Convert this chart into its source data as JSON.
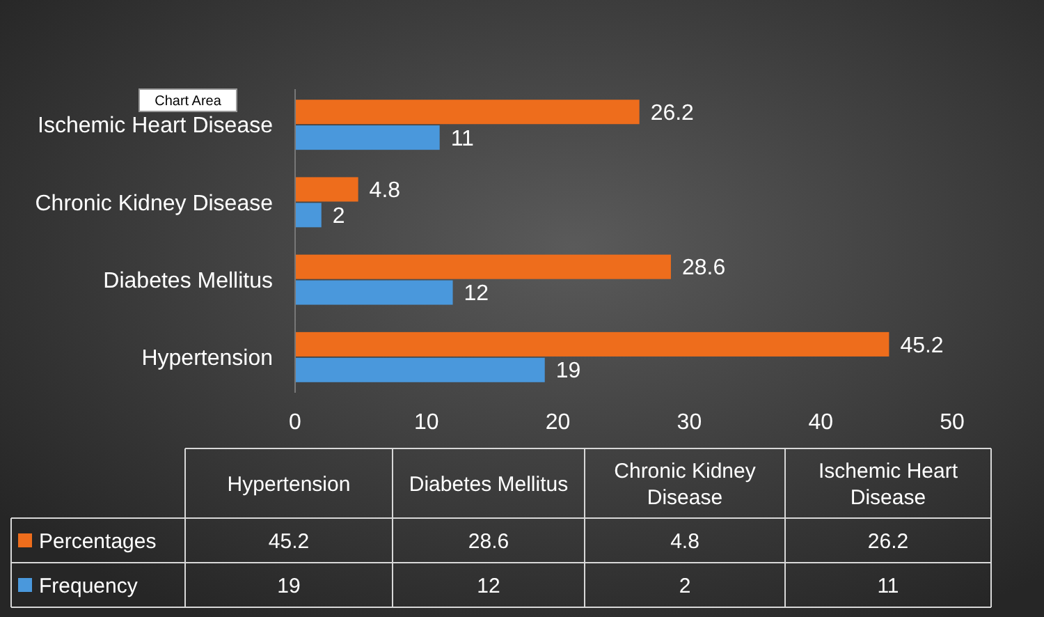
{
  "chart_data": [
    {
      "type": "bar",
      "orientation": "horizontal",
      "categories": [
        "Ischemic Heart Disease",
        "Chronic Kidney Disease",
        "Diabetes Mellitus",
        "Hypertension"
      ],
      "series": [
        {
          "name": "Percentages",
          "color": "#ee6d1c",
          "values": [
            26.2,
            4.8,
            28.6,
            45.2
          ]
        },
        {
          "name": "Frequency",
          "color": "#4a98dc",
          "values": [
            11,
            2,
            12,
            19
          ]
        }
      ],
      "xlim": [
        0,
        50
      ],
      "xticks": [
        0,
        10,
        20,
        30,
        40,
        50
      ],
      "grid": false,
      "data_labels": true,
      "legend": "bottom",
      "annotations": [
        "Chart Area"
      ]
    },
    {
      "type": "other",
      "categories": [
        "Hypertension",
        "Diabetes Mellitus",
        "Chronic Kidney Disease",
        "Ischemic Heart Disease"
      ],
      "series": [
        {
          "values": [
            45.2,
            28.6,
            4.8,
            26.2
          ]
        },
        {
          "values": [
            19,
            12,
            2,
            11
          ]
        }
      ],
      "data_labels": true
    }
  ]
}
